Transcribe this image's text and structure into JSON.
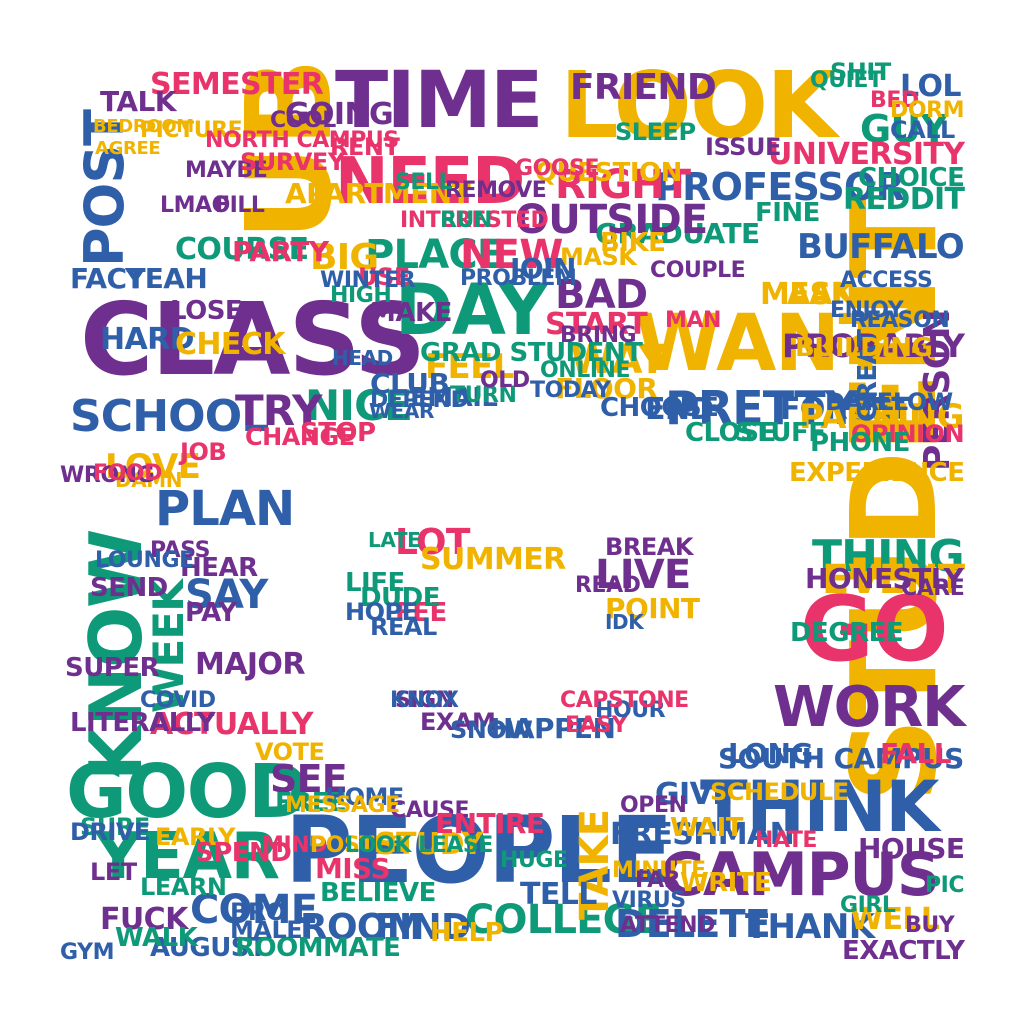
{
  "palette": {
    "purple": "#6f2f8f",
    "yellow": "#f0b400",
    "pink": "#e8336b",
    "green": "#0e9a78",
    "blue": "#2f5fa8"
  },
  "words": [
    {
      "text": "UB",
      "color": "yellow",
      "v": true
    },
    {
      "text": "TIME",
      "color": "purple"
    },
    {
      "text": "LOOK",
      "color": "yellow"
    },
    {
      "text": "NEED",
      "color": "pink"
    },
    {
      "text": "SEMESTER",
      "color": "pink"
    },
    {
      "text": "POST",
      "color": "blue",
      "v": true
    },
    {
      "text": "STUDENT",
      "color": "yellow",
      "v": true
    },
    {
      "text": "CLASS",
      "color": "purple"
    },
    {
      "text": "DAY",
      "color": "green"
    },
    {
      "text": "WANT",
      "color": "yellow"
    },
    {
      "text": "KNOW",
      "color": "green",
      "v": true
    },
    {
      "text": "SCHOOL",
      "color": "blue"
    },
    {
      "text": "PRETTY",
      "color": "blue"
    },
    {
      "text": "PROFESSOR",
      "color": "blue"
    },
    {
      "text": "RIGHT",
      "color": "pink"
    },
    {
      "text": "GO",
      "color": "pink"
    },
    {
      "text": "WORK",
      "color": "purple"
    },
    {
      "text": "GOOD",
      "color": "green"
    },
    {
      "text": "YEAR",
      "color": "green"
    },
    {
      "text": "PEOPLE",
      "color": "blue"
    },
    {
      "text": "THINK",
      "color": "blue"
    },
    {
      "text": "CAMPUS",
      "color": "purple"
    },
    {
      "text": "COLLEGE",
      "color": "green"
    },
    {
      "text": "DELETE",
      "color": "blue"
    },
    {
      "text": "THANK",
      "color": "blue"
    },
    {
      "text": "ROOM",
      "color": "blue"
    },
    {
      "text": "FIND",
      "color": "blue"
    },
    {
      "text": "COME",
      "color": "blue"
    },
    {
      "text": "FUCK",
      "color": "purple"
    },
    {
      "text": "WEEK",
      "color": "green",
      "v": true
    },
    {
      "text": "NICE",
      "color": "green"
    },
    {
      "text": "TRY",
      "color": "purple"
    },
    {
      "text": "PLACE",
      "color": "green"
    },
    {
      "text": "NEW",
      "color": "pink"
    },
    {
      "text": "BIG",
      "color": "yellow"
    },
    {
      "text": "FEEL",
      "color": "yellow"
    },
    {
      "text": "BAD",
      "color": "purple"
    },
    {
      "text": "START",
      "color": "pink"
    },
    {
      "text": "WAY",
      "color": "yellow"
    },
    {
      "text": "FLOOR",
      "color": "yellow"
    },
    {
      "text": "LIVE",
      "color": "purple"
    },
    {
      "text": "POINT",
      "color": "yellow"
    },
    {
      "text": "THING",
      "color": "green"
    },
    {
      "text": "PERSON",
      "color": "purple",
      "v": true
    },
    {
      "text": "BUFFALO",
      "color": "blue"
    },
    {
      "text": "GUY",
      "color": "green"
    },
    {
      "text": "LOL",
      "color": "blue"
    },
    {
      "text": "UNIVERSITY",
      "color": "pink"
    },
    {
      "text": "REDDIT",
      "color": "green"
    },
    {
      "text": "LOVE",
      "color": "yellow"
    },
    {
      "text": "ACTUALLY",
      "color": "pink"
    },
    {
      "text": "LITERALLY",
      "color": "purple"
    },
    {
      "text": "SAY",
      "color": "blue"
    },
    {
      "text": "HARD",
      "color": "blue"
    },
    {
      "text": "FACT",
      "color": "blue"
    },
    {
      "text": "YEAH",
      "color": "blue"
    },
    {
      "text": "COURSE",
      "color": "green"
    },
    {
      "text": "PARTY",
      "color": "pink"
    },
    {
      "text": "MEAN",
      "color": "yellow"
    },
    {
      "text": "ASK",
      "color": "yellow"
    },
    {
      "text": "FORGET",
      "color": "blue"
    },
    {
      "text": "GRADUATE",
      "color": "green"
    },
    {
      "text": "FRIEND",
      "color": "purple"
    },
    {
      "text": "QUESTION",
      "color": "yellow"
    },
    {
      "text": "APARTMENT",
      "color": "yellow"
    },
    {
      "text": "GOING",
      "color": "purple"
    },
    {
      "text": "TALK",
      "color": "purple"
    },
    {
      "text": "PICTURE",
      "color": "yellow"
    },
    {
      "text": "EVENT",
      "color": "yellow"
    },
    {
      "text": "PARKING",
      "color": "yellow"
    },
    {
      "text": "HONESTLY",
      "color": "purple"
    },
    {
      "text": "EXPERIENCE",
      "color": "yellow"
    },
    {
      "text": "OPINION",
      "color": "pink"
    },
    {
      "text": "PROBABLY",
      "color": "purple"
    },
    {
      "text": "SOUTH CAMPUS",
      "color": "blue"
    },
    {
      "text": "LONG",
      "color": "blue"
    },
    {
      "text": "FALL",
      "color": "pink"
    },
    {
      "text": "HOUSE",
      "color": "purple"
    },
    {
      "text": "WELL",
      "color": "yellow"
    },
    {
      "text": "EXACTLY",
      "color": "purple"
    },
    {
      "text": "FRESHMAN",
      "color": "blue"
    },
    {
      "text": "GIVE",
      "color": "blue"
    },
    {
      "text": "WAIT",
      "color": "yellow"
    },
    {
      "text": "WRITE",
      "color": "yellow"
    },
    {
      "text": "TAKE",
      "color": "yellow",
      "v": true
    },
    {
      "text": "STUDY",
      "color": "yellow"
    },
    {
      "text": "MISS",
      "color": "pink"
    },
    {
      "text": "TELL",
      "color": "blue"
    },
    {
      "text": "HELP",
      "color": "yellow"
    },
    {
      "text": "AUGUST",
      "color": "blue"
    },
    {
      "text": "ROOMMATE",
      "color": "green"
    },
    {
      "text": "WALK",
      "color": "green"
    },
    {
      "text": "SEE",
      "color": "purple"
    },
    {
      "text": "FREE",
      "color": "green"
    },
    {
      "text": "HOME",
      "color": "blue"
    },
    {
      "text": "HAPPEN",
      "color": "blue"
    },
    {
      "text": "BREAK",
      "color": "purple"
    },
    {
      "text": "LIFE",
      "color": "green"
    },
    {
      "text": "LOT",
      "color": "pink"
    },
    {
      "text": "FEE",
      "color": "pink"
    },
    {
      "text": "SUMMER",
      "color": "yellow"
    },
    {
      "text": "END",
      "color": "blue"
    },
    {
      "text": "CLOSE",
      "color": "green"
    },
    {
      "text": "STUFF",
      "color": "green"
    },
    {
      "text": "CHOOSE",
      "color": "blue"
    },
    {
      "text": "ONLINE",
      "color": "green"
    },
    {
      "text": "TODAY",
      "color": "blue"
    },
    {
      "text": "CLUB",
      "color": "blue"
    },
    {
      "text": "MAKE",
      "color": "purple"
    },
    {
      "text": "EMAIL",
      "color": "blue"
    },
    {
      "text": "STOP",
      "color": "pink"
    },
    {
      "text": "GRAD STUDENT",
      "color": "green"
    },
    {
      "text": "CHANGE",
      "color": "pink"
    },
    {
      "text": "OUTSIDE",
      "color": "purple"
    },
    {
      "text": "NORTH CAMPUS",
      "color": "pink"
    },
    {
      "text": "RENT",
      "color": "pink"
    },
    {
      "text": "CHECK",
      "color": "yellow"
    },
    {
      "text": "JOB",
      "color": "pink"
    },
    {
      "text": "MAJOR",
      "color": "purple"
    },
    {
      "text": "PAY",
      "color": "purple"
    },
    {
      "text": "DAMN",
      "color": "yellow"
    },
    {
      "text": "BEDROOM",
      "color": "yellow"
    },
    {
      "text": "SCHEDULE",
      "color": "yellow"
    },
    {
      "text": "USE",
      "color": "pink"
    },
    {
      "text": "DATE",
      "color": "blue"
    },
    {
      "text": "ALLOW",
      "color": "blue"
    },
    {
      "text": "MASK",
      "color": "yellow"
    },
    {
      "text": "DEGREE",
      "color": "green"
    },
    {
      "text": "SURE",
      "color": "green"
    },
    {
      "text": "DRIVE",
      "color": "blue"
    },
    {
      "text": "EARLY",
      "color": "yellow"
    },
    {
      "text": "SHIT",
      "color": "green"
    },
    {
      "text": "BED",
      "color": "pink"
    },
    {
      "text": "DORM",
      "color": "yellow"
    },
    {
      "text": "CALL",
      "color": "blue"
    },
    {
      "text": "QUIET",
      "color": "green"
    },
    {
      "text": "SEND",
      "color": "purple"
    },
    {
      "text": "EXAM",
      "color": "purple"
    },
    {
      "text": "SNOW",
      "color": "blue"
    },
    {
      "text": "EASY",
      "color": "pink"
    },
    {
      "text": "VOTE",
      "color": "yellow"
    },
    {
      "text": "HEAR",
      "color": "purple"
    },
    {
      "text": "LOSE",
      "color": "purple"
    },
    {
      "text": "SUPER",
      "color": "purple"
    },
    {
      "text": "COVID",
      "color": "blue"
    },
    {
      "text": "PASS",
      "color": "purple"
    },
    {
      "text": "LATE",
      "color": "green"
    },
    {
      "text": "DUDE",
      "color": "green"
    },
    {
      "text": "HOPE",
      "color": "blue"
    },
    {
      "text": "REAL",
      "color": "blue"
    },
    {
      "text": "IDK",
      "color": "blue"
    },
    {
      "text": "LEARN",
      "color": "green"
    },
    {
      "text": "BRO",
      "color": "blue"
    },
    {
      "text": "MALE",
      "color": "blue"
    },
    {
      "text": "MIND",
      "color": "pink"
    },
    {
      "text": "PLAN",
      "color": "blue"
    },
    {
      "text": "GREAT",
      "color": "blue",
      "v": true
    },
    {
      "text": "PHONE",
      "color": "green"
    },
    {
      "text": "BIKE",
      "color": "yellow"
    },
    {
      "text": "MAN",
      "color": "pink"
    },
    {
      "text": "COUPLE",
      "color": "purple"
    },
    {
      "text": "BRING",
      "color": "purple"
    },
    {
      "text": "LMAO",
      "color": "purple"
    },
    {
      "text": "FILL",
      "color": "purple"
    },
    {
      "text": "REMOVE",
      "color": "purple"
    },
    {
      "text": "INTERESTED",
      "color": "pink"
    },
    {
      "text": "SELL",
      "color": "green"
    },
    {
      "text": "AGREE",
      "color": "yellow"
    },
    {
      "text": "MAYBE",
      "color": "purple"
    },
    {
      "text": "SURVEY",
      "color": "pink"
    },
    {
      "text": "GOOSE",
      "color": "pink"
    },
    {
      "text": "HIGH",
      "color": "green"
    },
    {
      "text": "WINTER",
      "color": "blue"
    },
    {
      "text": "COOL",
      "color": "purple"
    },
    {
      "text": "READ",
      "color": "purple"
    },
    {
      "text": "CARE",
      "color": "purple"
    },
    {
      "text": "GIRL",
      "color": "green"
    },
    {
      "text": "OPEN",
      "color": "purple"
    },
    {
      "text": "CAUSE",
      "color": "purple"
    },
    {
      "text": "ISSUE",
      "color": "purple"
    },
    {
      "text": "FINE",
      "color": "green"
    },
    {
      "text": "BUILDING",
      "color": "yellow"
    },
    {
      "text": "ENJOY",
      "color": "blue"
    },
    {
      "text": "CHOICE",
      "color": "green"
    },
    {
      "text": "SLEEP",
      "color": "green"
    },
    {
      "text": "RUN",
      "color": "green"
    },
    {
      "text": "POSTER",
      "color": "yellow"
    },
    {
      "text": "ENTIRE",
      "color": "pink"
    },
    {
      "text": "HUGE",
      "color": "green"
    },
    {
      "text": "MINUTE",
      "color": "yellow"
    },
    {
      "text": "FAR",
      "color": "purple"
    },
    {
      "text": "VIRUS",
      "color": "blue"
    },
    {
      "text": "ATTEND",
      "color": "purple"
    },
    {
      "text": "HATE",
      "color": "pink"
    },
    {
      "text": "BUY",
      "color": "purple"
    },
    {
      "text": "PIC",
      "color": "green"
    },
    {
      "text": "HOUR",
      "color": "blue"
    },
    {
      "text": "TURN",
      "color": "green"
    },
    {
      "text": "OLD",
      "color": "purple"
    },
    {
      "text": "DEPEND",
      "color": "blue"
    },
    {
      "text": "JOIN",
      "color": "blue"
    },
    {
      "text": "PROBLEM",
      "color": "blue"
    },
    {
      "text": "MESSAGE",
      "color": "yellow"
    },
    {
      "text": "SPEND",
      "color": "pink"
    },
    {
      "text": "BELIEVE",
      "color": "green"
    },
    {
      "text": "LOOK LEASE",
      "color": "green"
    },
    {
      "text": "WRONG",
      "color": "purple"
    },
    {
      "text": "FOOD",
      "color": "pink"
    },
    {
      "text": "LOUNGE",
      "color": "blue"
    },
    {
      "text": "LET",
      "color": "purple"
    },
    {
      "text": "ACCESS",
      "color": "blue"
    },
    {
      "text": "REASON",
      "color": "blue"
    },
    {
      "text": "SIGN",
      "color": "purple"
    },
    {
      "text": "CAPSTONE",
      "color": "pink"
    },
    {
      "text": "KNOX",
      "color": "blue"
    },
    {
      "text": "GYM",
      "color": "blue"
    },
    {
      "text": "HEAD",
      "color": "blue"
    },
    {
      "text": "WEAR",
      "color": "blue"
    }
  ]
}
